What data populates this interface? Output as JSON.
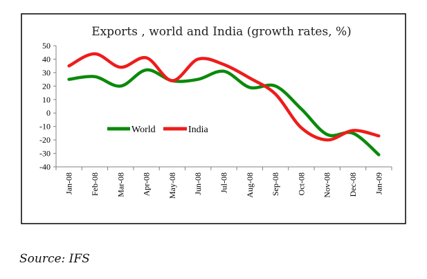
{
  "chart_data": {
    "type": "line",
    "title": "Exports , world and India (growth rates, %)",
    "categories": [
      "Jan-08",
      "Feb-08",
      "Mar-08",
      "Apr-08",
      "May-08",
      "Jun-08",
      "Jul-08",
      "Aug-08",
      "Sep-08",
      "Oct-08",
      "Nov-08",
      "Dec-08",
      "Jan-09"
    ],
    "series": [
      {
        "name": "World",
        "color": "#0a8a0a",
        "values": [
          25,
          27,
          20,
          32,
          24,
          25,
          31,
          19,
          20,
          3,
          -16,
          -15,
          -31
        ]
      },
      {
        "name": "India",
        "color": "#ee1c1c",
        "values": [
          35,
          44,
          34,
          41,
          24,
          40,
          36,
          26,
          14,
          -11,
          -20,
          -13,
          -17
        ]
      }
    ],
    "ylim": [
      -40,
      50
    ],
    "yticks": [
      "50",
      "40",
      "30",
      "20",
      "10",
      "0",
      "-10",
      "-20",
      "-30",
      "-40"
    ],
    "xlabel": "",
    "ylabel": "",
    "legend": "center-left"
  },
  "caption": "Source: IFS"
}
